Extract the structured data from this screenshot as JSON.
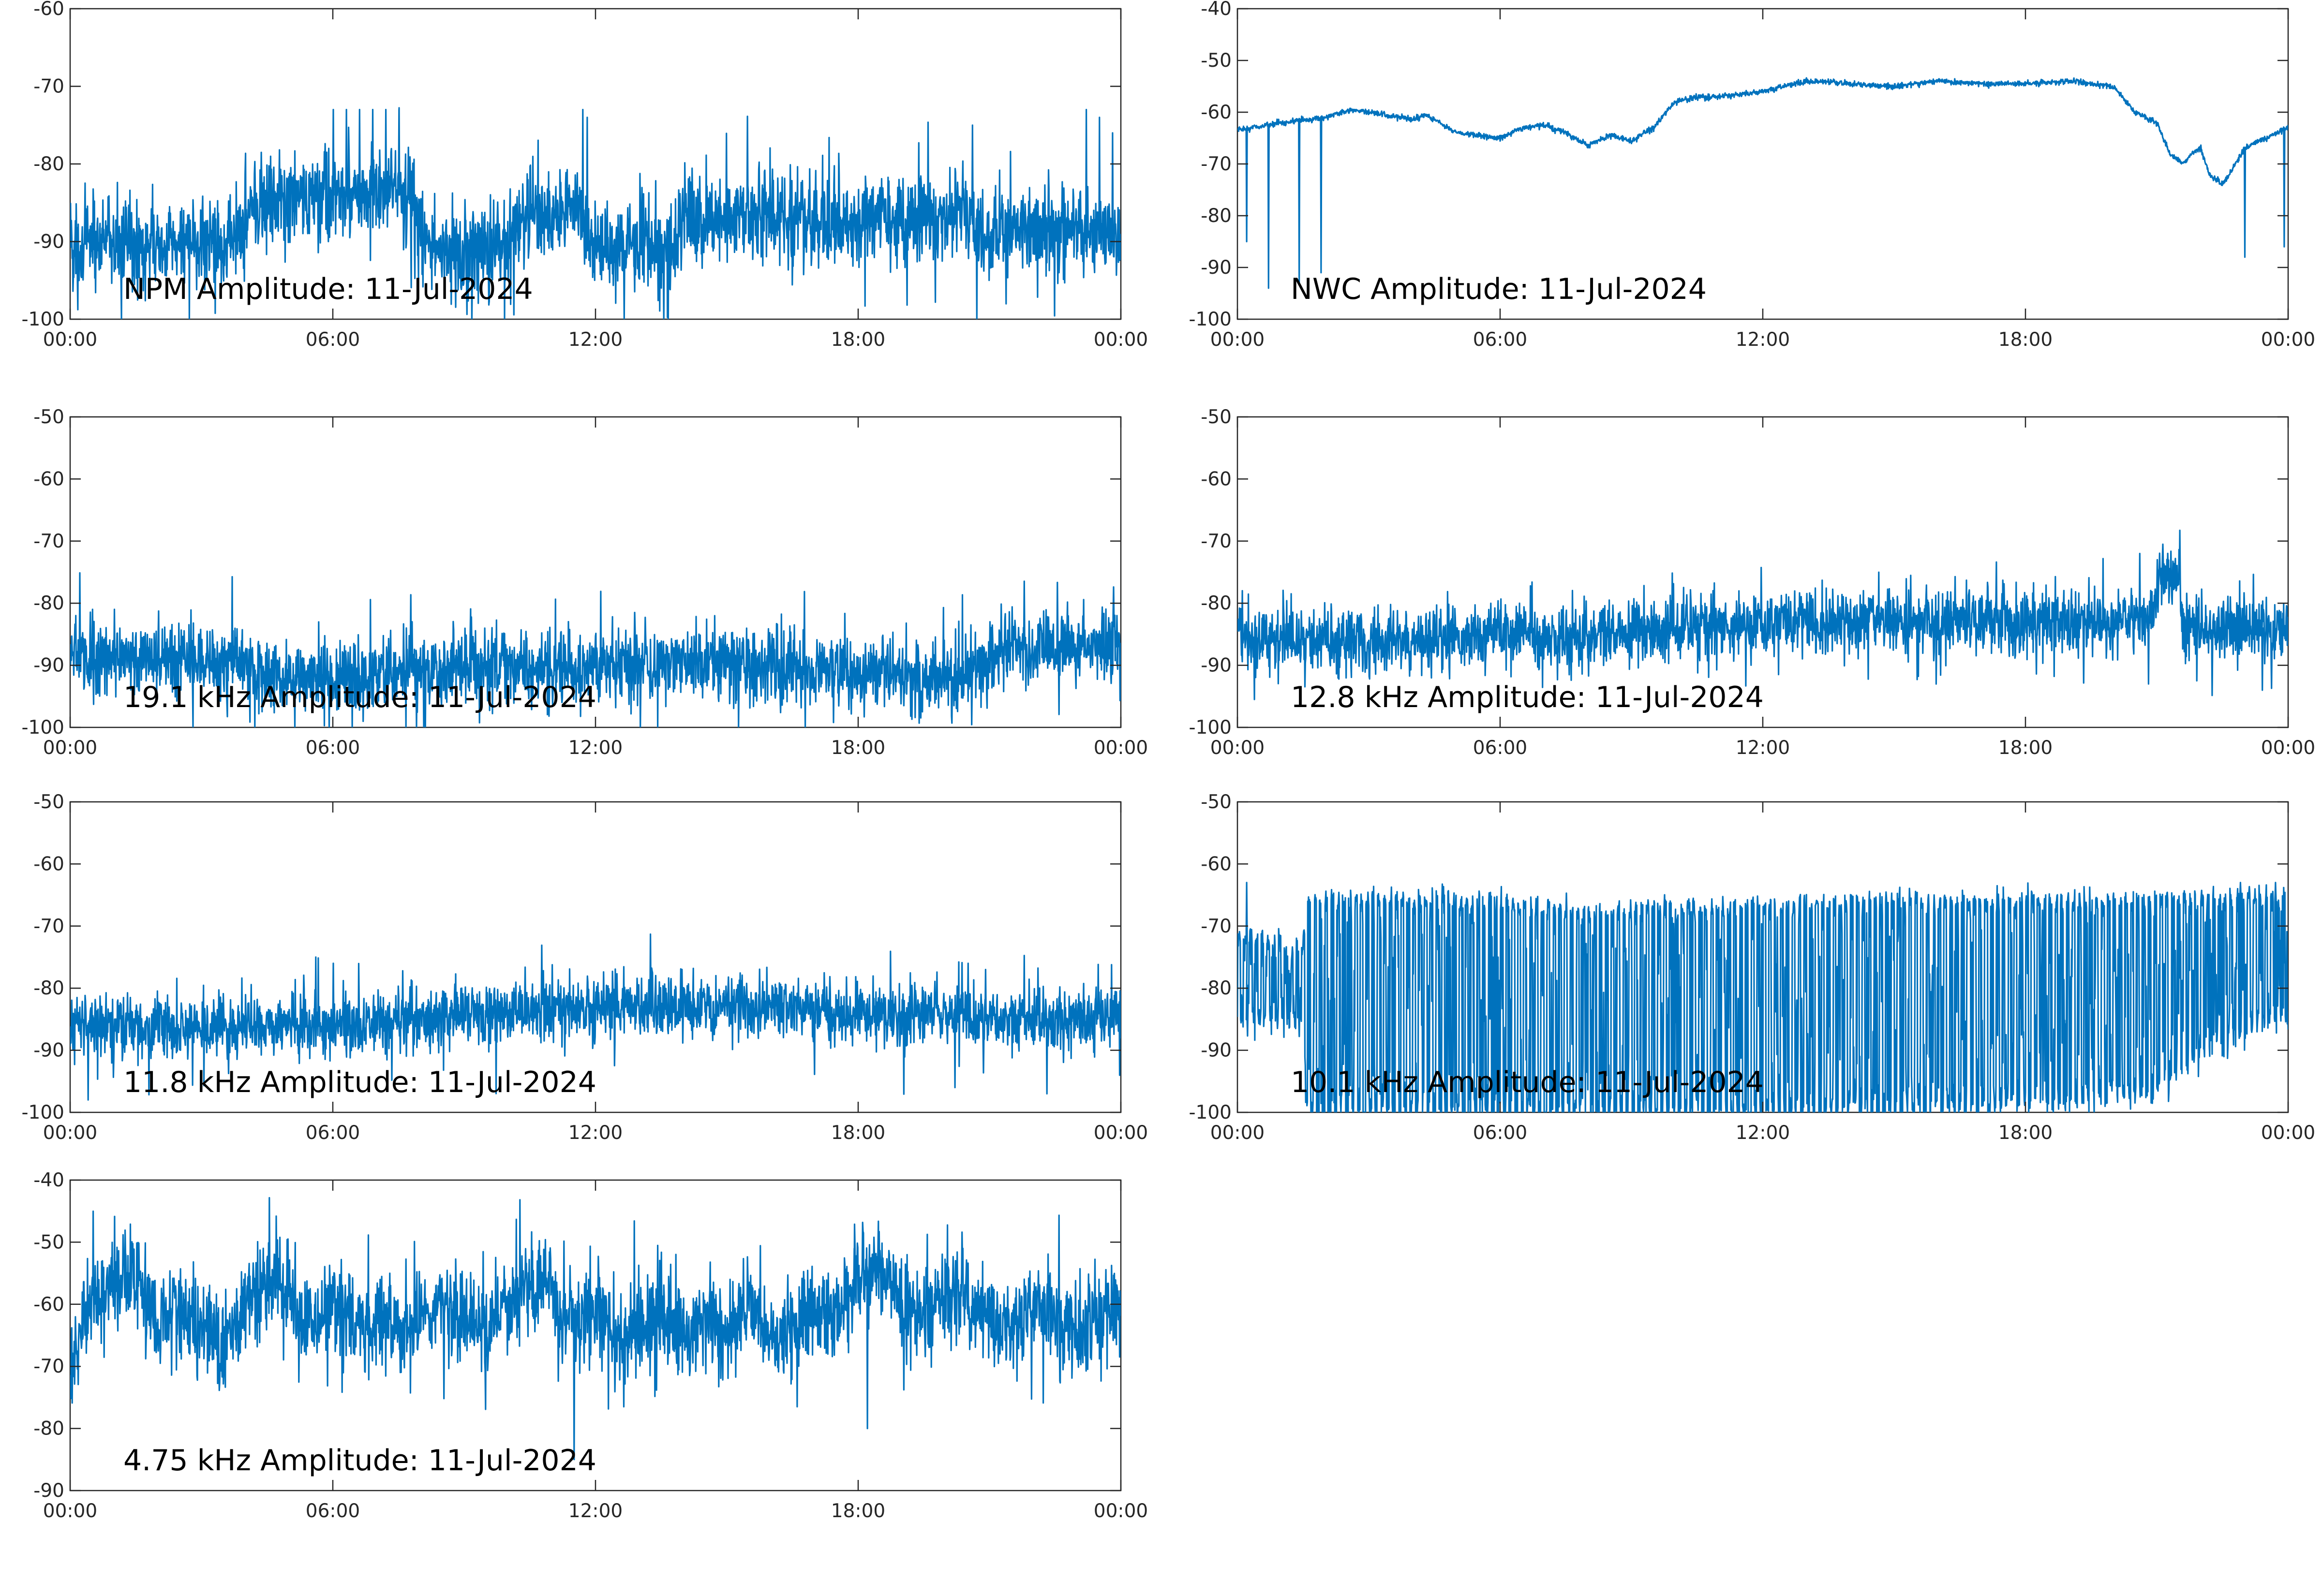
{
  "chart_data": [
    {
      "type": "line",
      "title": "NPM Amplitude: 11-Jul-2024",
      "xlabel": "",
      "ylabel": "",
      "xlim": [
        "00:00",
        "24:00"
      ],
      "xticks": [
        "00:00",
        "06:00",
        "12:00",
        "18:00",
        "00:00"
      ],
      "ylim": [
        -100,
        -60
      ],
      "yticks": [
        "-60",
        "-70",
        "-80",
        "-90",
        "-100"
      ],
      "grid": false,
      "color": "#0072BD",
      "noise": 4,
      "series": [
        {
          "x": [
            0,
            1,
            2,
            3,
            4,
            4.1,
            5,
            6,
            7,
            7.8,
            8,
            9,
            10,
            10.2,
            11,
            11.5,
            12,
            13,
            13.8,
            14,
            16,
            18,
            20,
            20.5,
            21,
            22,
            23,
            23.5,
            24
          ],
          "y": [
            -91,
            -90,
            -91,
            -90,
            -89,
            -85,
            -85,
            -84,
            -84,
            -84,
            -90,
            -91,
            -91,
            -87,
            -87,
            -86,
            -91,
            -91,
            -91,
            -87,
            -87,
            -87,
            -87,
            -86,
            -89,
            -88,
            -89,
            -90,
            -89
          ]
        }
      ],
      "spikes": [
        {
          "x": 6.0,
          "y": -73
        },
        {
          "x": 6.3,
          "y": -73
        },
        {
          "x": 6.6,
          "y": -73
        },
        {
          "x": 6.9,
          "y": -73
        },
        {
          "x": 7.2,
          "y": -73
        },
        {
          "x": 7.5,
          "y": -73
        },
        {
          "x": 11.7,
          "y": -73
        },
        {
          "x": 11.8,
          "y": -74
        },
        {
          "x": 20.6,
          "y": -75
        },
        {
          "x": 20.7,
          "y": -100
        },
        {
          "x": 23.2,
          "y": -73
        },
        {
          "x": 23.5,
          "y": -74
        },
        {
          "x": 23.8,
          "y": -76
        }
      ]
    },
    {
      "type": "line",
      "title": "NWC Amplitude: 11-Jul-2024",
      "xlabel": "",
      "ylabel": "",
      "xlim": [
        "00:00",
        "24:00"
      ],
      "xticks": [
        "00:00",
        "06:00",
        "12:00",
        "18:00",
        "00:00"
      ],
      "ylim": [
        -100,
        -40
      ],
      "yticks": [
        "-40",
        "-50",
        "-60",
        "-70",
        "-80",
        "-90",
        "-100"
      ],
      "grid": false,
      "color": "#0072BD",
      "noise": 0.4,
      "series": [
        {
          "x": [
            0,
            1,
            2,
            2.6,
            3,
            4,
            4.3,
            4.6,
            5,
            6,
            6.5,
            7,
            7.5,
            8,
            8.5,
            9,
            9.5,
            10,
            10.5,
            11,
            12,
            13,
            14,
            15,
            16,
            17,
            18,
            19,
            20,
            20.5,
            21,
            21.3,
            21.6,
            21.8,
            22,
            22.2,
            22.5,
            22.8,
            23,
            23.5,
            24
          ],
          "y": [
            -63.5,
            -62,
            -61,
            -59.5,
            -60,
            -61.5,
            -60.5,
            -62,
            -64,
            -65,
            -63,
            -62.5,
            -64,
            -66.5,
            -64.5,
            -65.5,
            -63,
            -58,
            -57,
            -57,
            -56,
            -54,
            -54.5,
            -55,
            -54,
            -54.5,
            -54.5,
            -54,
            -55,
            -60,
            -62,
            -68,
            -70,
            -68,
            -67,
            -72,
            -74,
            -70,
            -67,
            -65,
            -63
          ]
        }
      ],
      "spikes": [
        {
          "x": 0.2,
          "y": -85
        },
        {
          "x": 0.7,
          "y": -94
        },
        {
          "x": 1.4,
          "y": -93
        },
        {
          "x": 1.9,
          "y": -91
        },
        {
          "x": 23.0,
          "y": -88
        },
        {
          "x": 23.9,
          "y": -86
        }
      ]
    },
    {
      "type": "line",
      "title": "19.1 kHz Amplitude: 11-Jul-2024",
      "xlabel": "",
      "ylabel": "",
      "xlim": [
        "00:00",
        "24:00"
      ],
      "xticks": [
        "00:00",
        "06:00",
        "12:00",
        "18:00",
        "00:00"
      ],
      "ylim": [
        -100,
        -50
      ],
      "yticks": [
        "-50",
        "-60",
        "-70",
        "-80",
        "-90",
        "-100"
      ],
      "grid": false,
      "color": "#0072BD",
      "noise": 4,
      "series": [
        {
          "x": [
            0,
            2,
            4,
            4.2,
            6,
            8,
            10,
            12,
            14,
            16,
            18,
            20,
            20.8,
            21.2,
            24
          ],
          "y": [
            -89,
            -89,
            -89,
            -92,
            -92,
            -91,
            -90,
            -90,
            -89,
            -90,
            -91,
            -92,
            -91,
            -87,
            -87
          ]
        }
      ],
      "spikes": [
        {
          "x": 0.5,
          "y": -81
        },
        {
          "x": 1.0,
          "y": -81
        },
        {
          "x": 7.8,
          "y": -83
        },
        {
          "x": 7.9,
          "y": -100
        },
        {
          "x": 21.0,
          "y": -83
        },
        {
          "x": 23.9,
          "y": -82
        }
      ]
    },
    {
      "type": "line",
      "title": "12.8 kHz Amplitude: 11-Jul-2024",
      "xlabel": "",
      "ylabel": "",
      "xlim": [
        "00:00",
        "24:00"
      ],
      "xticks": [
        "00:00",
        "06:00",
        "12:00",
        "18:00",
        "00:00"
      ],
      "ylim": [
        -100,
        -50
      ],
      "yticks": [
        "-50",
        "-60",
        "-70",
        "-80",
        "-90",
        "-100"
      ],
      "grid": false,
      "color": "#0072BD",
      "noise": 3.5,
      "series": [
        {
          "x": [
            0,
            2,
            4,
            6,
            8,
            10,
            12,
            14,
            16,
            18,
            20,
            20.9,
            21.1,
            21.5,
            21.6,
            24
          ],
          "y": [
            -86,
            -86,
            -86,
            -85,
            -85,
            -84,
            -83,
            -83,
            -83,
            -83,
            -83,
            -82,
            -76,
            -76,
            -84,
            -84
          ]
        }
      ],
      "spikes": [
        {
          "x": 0.1,
          "y": -78
        },
        {
          "x": 20.6,
          "y": -72
        },
        {
          "x": 20.8,
          "y": -93
        },
        {
          "x": 21.0,
          "y": -73
        },
        {
          "x": 23.4,
          "y": -94
        }
      ]
    },
    {
      "type": "line",
      "title": "11.8 kHz Amplitude: 11-Jul-2024",
      "xlabel": "",
      "ylabel": "",
      "xlim": [
        "00:00",
        "24:00"
      ],
      "xticks": [
        "00:00",
        "06:00",
        "12:00",
        "18:00",
        "00:00"
      ],
      "ylim": [
        -100,
        -50
      ],
      "yticks": [
        "-50",
        "-60",
        "-70",
        "-80",
        "-90",
        "-100"
      ],
      "grid": false,
      "color": "#0072BD",
      "noise": 3.5,
      "series": [
        {
          "x": [
            0,
            2,
            4,
            6,
            8,
            10,
            12,
            14,
            16,
            18,
            20,
            20.5,
            21,
            22,
            24
          ],
          "y": [
            -86,
            -86,
            -86,
            -86,
            -85,
            -84,
            -83,
            -83,
            -83,
            -84,
            -84,
            -84,
            -85,
            -85,
            -85
          ]
        }
      ],
      "spikes": [
        {
          "x": 0.4,
          "y": -98
        },
        {
          "x": 5.6,
          "y": -75
        },
        {
          "x": 6.0,
          "y": -76
        },
        {
          "x": 20.2,
          "y": -96
        },
        {
          "x": 20.5,
          "y": -76
        },
        {
          "x": 20.9,
          "y": -77
        },
        {
          "x": 22.3,
          "y": -97
        }
      ]
    },
    {
      "type": "line",
      "title": "10.1 kHz Amplitude: 11-Jul-2024",
      "xlabel": "",
      "ylabel": "",
      "xlim": [
        "00:00",
        "24:00"
      ],
      "xticks": [
        "00:00",
        "06:00",
        "12:00",
        "18:00",
        "00:00"
      ],
      "ylim": [
        -100,
        -50
      ],
      "yticks": [
        "-50",
        "-60",
        "-70",
        "-80",
        "-90",
        "-100"
      ],
      "grid": false,
      "color": "#0072BD",
      "oscillating": true,
      "series": [
        {
          "x": [
            0,
            1.5,
            1.6,
            6,
            8,
            12,
            18,
            21,
            22,
            23,
            24
          ],
          "top": [
            -72,
            -73,
            -66,
            -66,
            -68,
            -67,
            -66,
            -66,
            -66,
            -65,
            -66
          ],
          "bottom": [
            -85,
            -85,
            -100,
            -100,
            -100,
            -100,
            -98,
            -96,
            -90,
            -86,
            -84
          ]
        }
      ],
      "spikes": [
        {
          "x": 0.2,
          "y": -63
        },
        {
          "x": 22.9,
          "y": -63
        },
        {
          "x": 23.7,
          "y": -63
        }
      ]
    },
    {
      "type": "line",
      "title": "4.75 kHz Amplitude: 11-Jul-2024",
      "xlabel": "",
      "ylabel": "",
      "xlim": [
        "00:00",
        "24:00"
      ],
      "xticks": [
        "00:00",
        "06:00",
        "12:00",
        "18:00",
        "00:00"
      ],
      "ylim": [
        -90,
        -40
      ],
      "yticks": [
        "-40",
        "-50",
        "-60",
        "-70",
        "-80",
        "-90"
      ],
      "grid": false,
      "color": "#0072BD",
      "noise": 5,
      "series": [
        {
          "x": [
            0,
            0.3,
            0.6,
            1,
            1.5,
            2,
            2.5,
            3,
            3.5,
            4,
            4.5,
            5,
            5.5,
            6,
            6.5,
            7,
            7.5,
            8,
            8.5,
            9,
            9.5,
            10,
            10.5,
            11,
            11.2,
            11.5,
            12,
            12.5,
            13,
            13.5,
            14,
            14.5,
            15,
            15.5,
            16,
            16.5,
            17,
            17.5,
            18,
            18.5,
            19,
            19.5,
            20,
            20.5,
            21,
            21.5,
            22,
            22.5,
            23,
            23.5,
            24
          ],
          "y": [
            -72,
            -62,
            -58,
            -56,
            -56,
            -64,
            -60,
            -63,
            -68,
            -60,
            -57,
            -58,
            -63,
            -60,
            -64,
            -62,
            -65,
            -63,
            -60,
            -62,
            -64,
            -60,
            -57,
            -56,
            -64,
            -62,
            -60,
            -66,
            -64,
            -62,
            -66,
            -63,
            -65,
            -60,
            -66,
            -64,
            -60,
            -62,
            -56,
            -54,
            -60,
            -62,
            -58,
            -60,
            -62,
            -64,
            -60,
            -62,
            -65,
            -63,
            -60
          ]
        }
      ],
      "spikes": [
        {
          "x": 4.4,
          "y": -51
        },
        {
          "x": 11.5,
          "y": -85
        },
        {
          "x": 17.9,
          "y": -51
        },
        {
          "x": 18.2,
          "y": -80
        }
      ]
    }
  ]
}
